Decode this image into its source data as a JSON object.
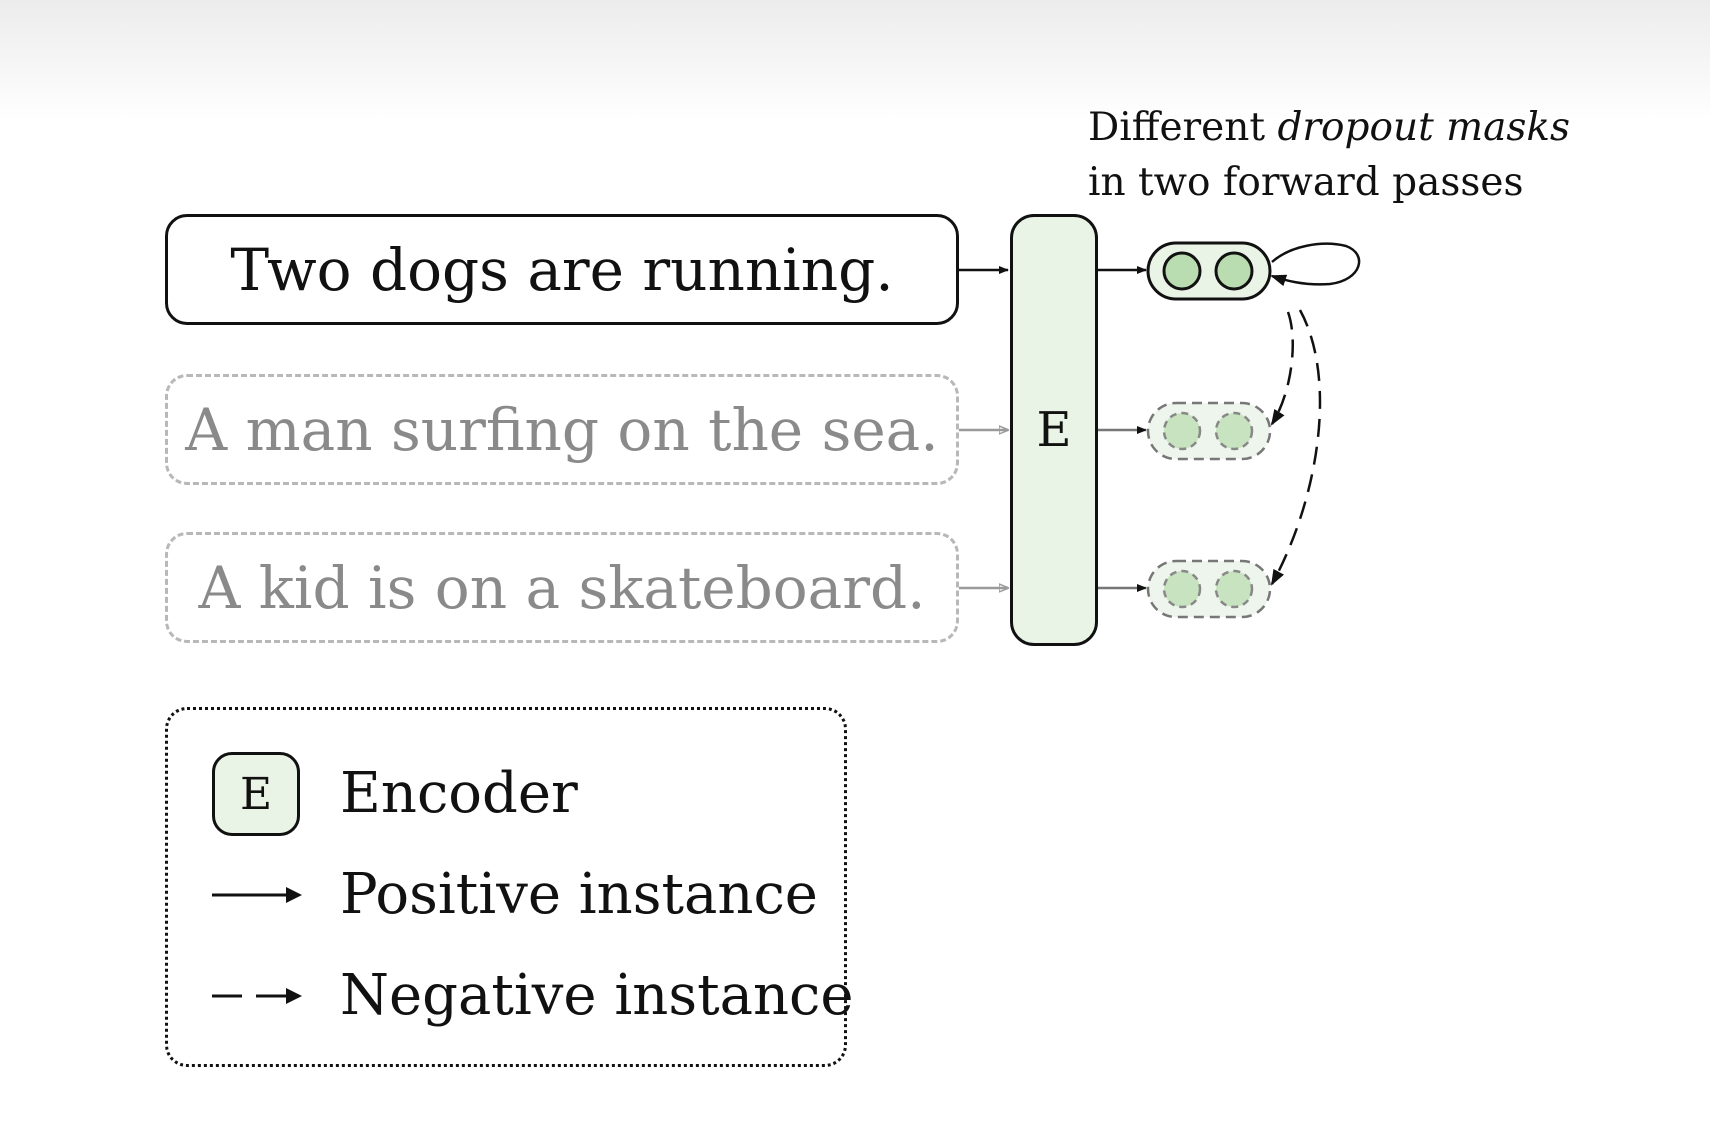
{
  "sentences": {
    "positive": "Two dogs are running.",
    "negative_1": "A man surfing on the sea.",
    "negative_2": "A kid is on a skateboard."
  },
  "encoder": {
    "label": "E"
  },
  "annotation": {
    "line1_prefix": "Different ",
    "line1_italic": "dropout masks",
    "line2": "in two forward passes"
  },
  "legend": {
    "encoder_symbol": "E",
    "encoder_label": "Encoder",
    "positive_label": "Positive instance",
    "negative_label": "Negative instance"
  },
  "colors": {
    "encoder_fill": "#e9f3e6",
    "dot_fill": "#b9ddb0",
    "negative_gray": "#b8b8b8",
    "ink": "#111111"
  }
}
